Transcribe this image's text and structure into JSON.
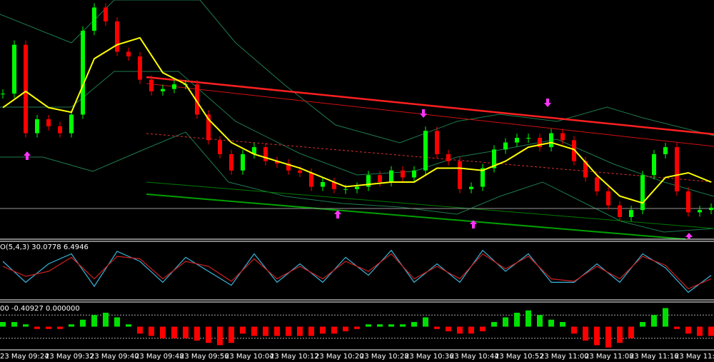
{
  "chart_data": [
    {
      "type": "candlestick",
      "ylim": [
        0,
        100
      ],
      "up_color": "#00ff00",
      "down_color": "#ff0000",
      "ma_color": "#ffff00",
      "values": [
        61,
        82,
        44,
        50,
        47,
        44,
        52,
        88,
        98,
        92,
        79,
        77,
        67,
        62,
        63,
        65,
        65,
        52,
        41,
        35,
        28,
        35,
        38,
        32,
        31,
        28,
        27,
        21,
        23,
        20,
        20,
        21,
        26,
        23,
        28,
        25,
        28,
        45,
        35,
        32,
        20,
        21,
        29,
        37,
        40,
        42,
        42,
        38,
        44,
        41,
        32,
        25,
        19,
        13,
        8,
        11,
        26,
        35,
        38,
        19,
        10,
        11,
        12
      ],
      "ma_values": [
        55,
        62,
        55,
        53,
        76,
        82,
        85,
        70,
        65,
        50,
        40,
        35,
        32,
        29,
        25,
        21,
        22,
        23,
        23,
        29,
        29,
        28,
        32,
        38,
        40,
        37,
        26,
        17,
        14,
        25,
        27,
        23
      ]
    },
    {
      "type": "line",
      "title": "O(5,4,3) 30.0778 6.4946",
      "ylim": [
        0,
        100
      ],
      "series": [
        {
          "color": "#3ab4d8",
          "values": [
            70,
            28,
            65,
            85,
            20,
            90,
            70,
            28,
            78,
            50,
            22,
            85,
            28,
            65,
            28,
            78,
            42,
            92,
            28,
            65,
            28,
            92,
            50,
            85,
            28,
            28,
            65,
            28,
            85,
            57,
            8,
            42
          ]
        },
        {
          "color": "#d02020",
          "values": [
            60,
            40,
            50,
            78,
            35,
            80,
            75,
            35,
            70,
            60,
            30,
            75,
            35,
            60,
            35,
            70,
            50,
            85,
            35,
            60,
            35,
            85,
            55,
            80,
            35,
            30,
            60,
            35,
            80,
            62,
            15,
            35
          ]
        }
      ]
    },
    {
      "type": "bar",
      "title": "00 -0.40927 0.000000",
      "ylim": [
        -1,
        1
      ],
      "levels": [
        0.5,
        -0.5
      ],
      "up_color": "#00e000",
      "down_color": "#ff0000",
      "values": [
        0.2,
        0.2,
        0.1,
        -0.1,
        -0.1,
        -0.1,
        0.1,
        0.3,
        0.5,
        0.6,
        0.4,
        0.1,
        -0.3,
        -0.4,
        -0.5,
        -0.5,
        -0.5,
        -0.6,
        -0.7,
        -0.8,
        -0.7,
        -0.3,
        -0.4,
        -0.4,
        -0.4,
        -0.4,
        -0.4,
        -0.4,
        -0.3,
        -0.3,
        -0.2,
        -0.1,
        0.1,
        0.1,
        0.1,
        0.1,
        0.2,
        0.4,
        -0.1,
        -0.2,
        -0.3,
        -0.3,
        -0.2,
        0.2,
        0.4,
        0.6,
        0.7,
        0.5,
        0.3,
        0.2,
        -0.3,
        -0.6,
        -0.8,
        -0.9,
        -0.7,
        -0.5,
        0.2,
        0.5,
        0.8,
        -0.1,
        -0.3,
        -0.4,
        -0.4
      ]
    }
  ],
  "time_labels": [
    "23 May 09:24",
    "23 May 09:32",
    "23 May 09:40",
    "23 May 09:48",
    "23 May 09:56",
    "23 May 10:04",
    "23 May 10:12",
    "23 May 10:20",
    "23 May 10:28",
    "23 May 10:36",
    "23 May 10:44",
    "23 May 10:52",
    "23 May 11:00",
    "23 May 11:08",
    "23 May 11:16",
    "23 May 11:2"
  ]
}
